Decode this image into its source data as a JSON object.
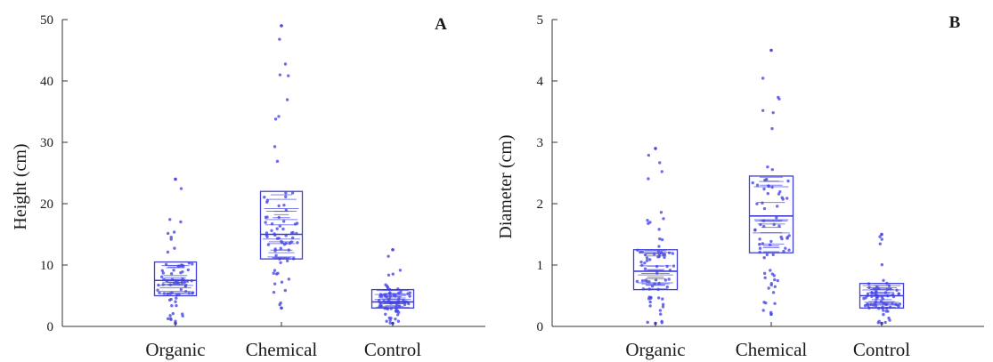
{
  "chart_data": [
    {
      "type": "box",
      "panel_label": "A",
      "ylabel": "Height (cm)",
      "ylim": [
        0,
        50
      ],
      "yticks": [
        "0",
        "10",
        "20",
        "30",
        "40",
        "50"
      ],
      "categories": [
        "Organic",
        "Chemical",
        "Control"
      ],
      "series": [
        {
          "category": "Organic",
          "q1": 5,
          "median": 7.5,
          "q3": 10.5,
          "min": 0.5,
          "max": 24
        },
        {
          "category": "Chemical",
          "q1": 11,
          "median": 15,
          "q3": 22,
          "min": 3,
          "max": 49
        },
        {
          "category": "Control",
          "q1": 3,
          "median": 4,
          "q3": 6,
          "min": 0.5,
          "max": 12.5
        }
      ]
    },
    {
      "type": "box",
      "panel_label": "B",
      "ylabel": "Diameter  (cm)",
      "ylim": [
        0,
        5
      ],
      "yticks": [
        "0",
        "1",
        "2",
        "3",
        "4",
        "5"
      ],
      "categories": [
        "Organic",
        "Chemical",
        "Control"
      ],
      "series": [
        {
          "category": "Organic",
          "q1": 0.6,
          "median": 0.9,
          "q3": 1.25,
          "min": 0.05,
          "max": 2.9
        },
        {
          "category": "Chemical",
          "q1": 1.2,
          "median": 1.8,
          "q3": 2.45,
          "min": 0.2,
          "max": 4.5
        },
        {
          "category": "Control",
          "q1": 0.3,
          "median": 0.5,
          "q3": 0.7,
          "min": 0.05,
          "max": 1.5
        }
      ]
    }
  ],
  "colors": {
    "series": "#3f3fd8",
    "points": "#4a4ae6",
    "axis": "#333333"
  }
}
